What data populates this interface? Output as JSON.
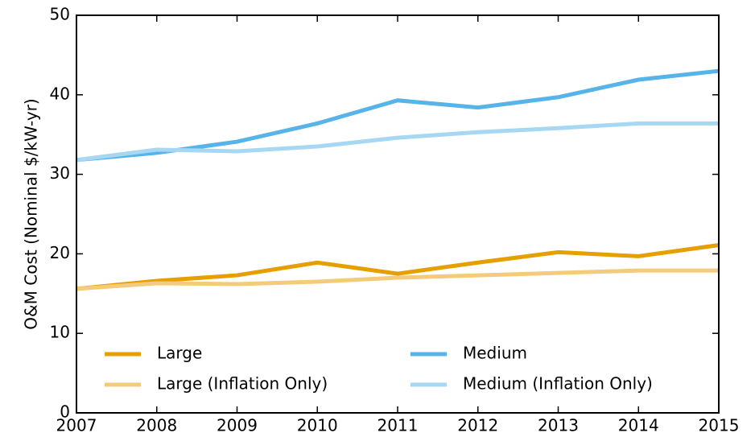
{
  "chart_data": {
    "type": "line",
    "y_label": "O&M Cost (Nominal $/kW-yr)",
    "x": [
      2007,
      2008,
      2009,
      2010,
      2011,
      2012,
      2013,
      2014,
      2015
    ],
    "series": [
      {
        "name": "Large",
        "color": "#e69f00",
        "values": [
          15.6,
          16.6,
          17.3,
          18.9,
          17.5,
          18.9,
          20.2,
          19.7,
          21.1
        ]
      },
      {
        "name": "Large (Inflation Only)",
        "color": "#f3cb7a",
        "values": [
          15.6,
          16.3,
          16.2,
          16.5,
          17.0,
          17.3,
          17.6,
          17.9,
          17.9
        ]
      },
      {
        "name": "Medium",
        "color": "#56b4e9",
        "values": [
          31.8,
          32.7,
          34.1,
          36.4,
          39.3,
          38.4,
          39.7,
          41.9,
          43.0
        ]
      },
      {
        "name": "Medium (Inflation Only)",
        "color": "#a6d7f3",
        "values": [
          31.8,
          33.1,
          32.9,
          33.5,
          34.6,
          35.3,
          35.8,
          36.4,
          36.4
        ]
      }
    ],
    "xlim": [
      2007,
      2015
    ],
    "xticks": [
      2007,
      2008,
      2009,
      2010,
      2011,
      2012,
      2013,
      2014,
      2015
    ],
    "ylim": [
      0,
      50
    ],
    "yticks": [
      0,
      10,
      20,
      30,
      40,
      50
    ],
    "legend": "lower center"
  }
}
